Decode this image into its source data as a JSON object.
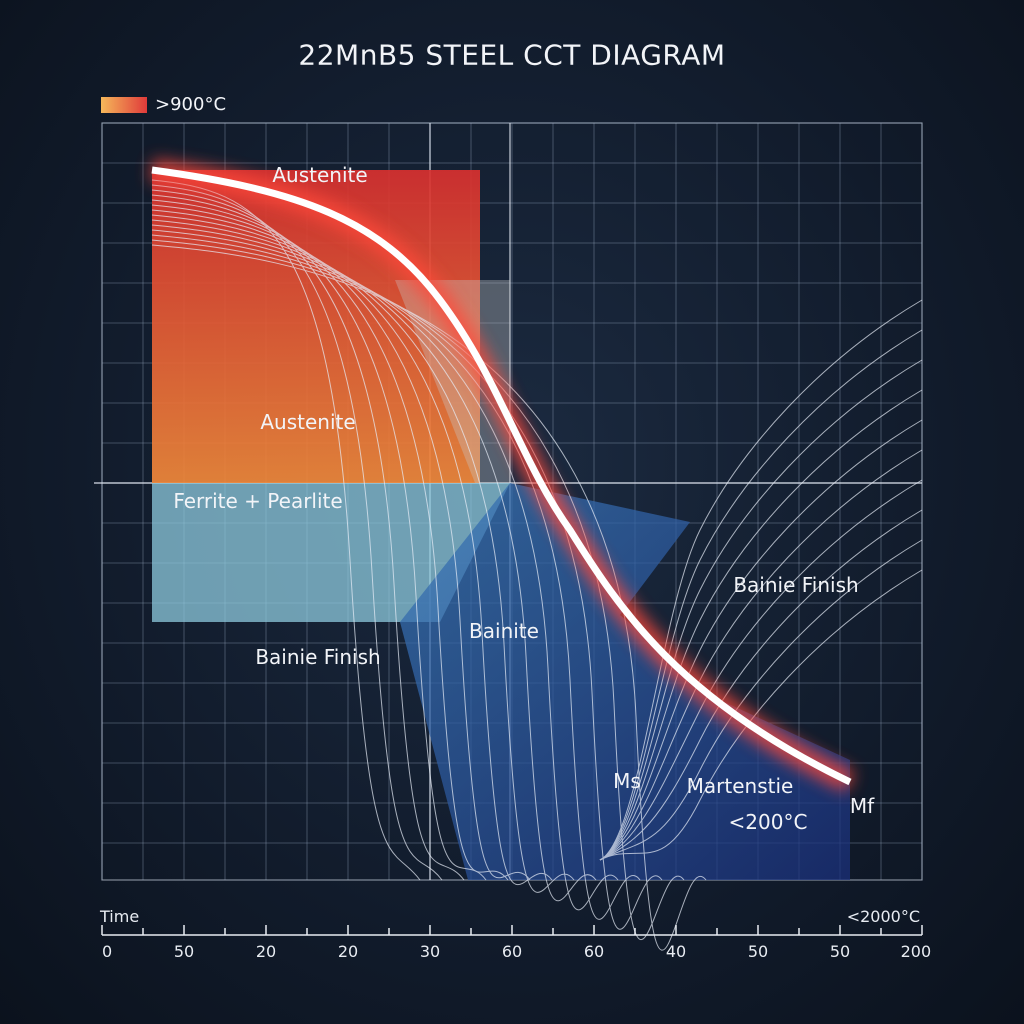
{
  "title": "22MnB5 STEEL CCT DIAGRAM",
  "legend": {
    "label": ">900°C",
    "colors": [
      "#f5b85a",
      "#e03a3a"
    ]
  },
  "regions": {
    "austenite_top": "Austenite",
    "austenite": "Austenite",
    "ferrite_pearlite": "Ferrite + Pearlite",
    "bainite": "Bainite",
    "bainite_finish_left": "Bainie Finish",
    "bainite_finish_right": "Bainie Finish",
    "ms": "Ms",
    "martensite": "Martenstie",
    "martensite_temp": "<200°C",
    "mf": "Mf"
  },
  "x_axis": {
    "label": "Time",
    "right_label": "<2000°C",
    "ticks": [
      "0",
      "50",
      "20",
      "20",
      "30",
      "60",
      "60",
      "40",
      "50",
      "50",
      "200"
    ]
  },
  "colors": {
    "austenite": "#e8452e",
    "ferrite_pearlite": "#8ec9dd",
    "bainite": "#2a5a9a",
    "curve": "#ffffff",
    "glow": "#ff4a3a"
  }
}
